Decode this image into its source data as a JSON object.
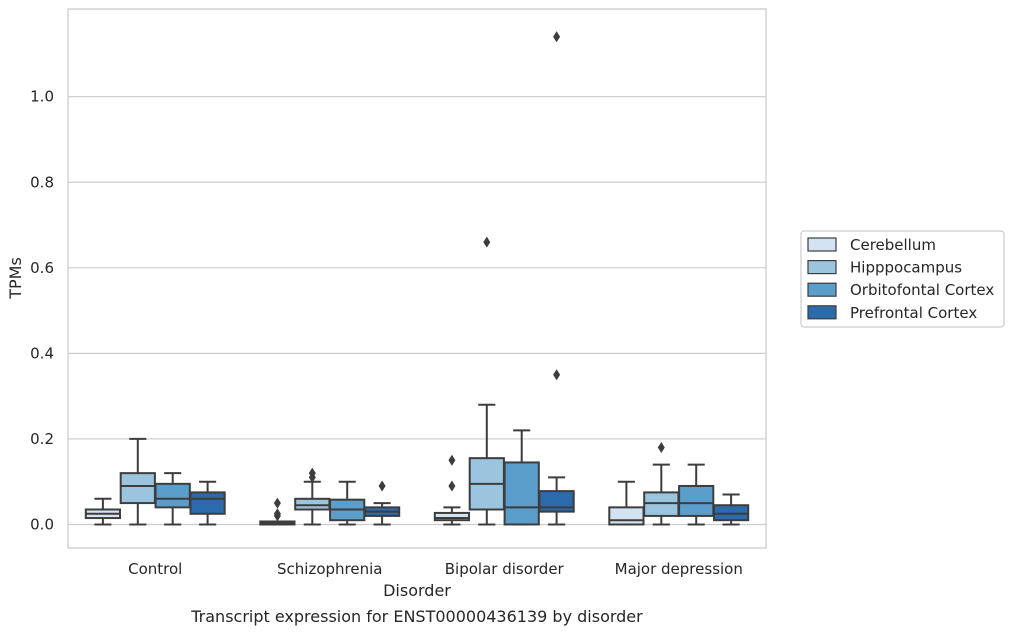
{
  "chart_data": {
    "type": "box",
    "caption": "Transcript expression for ENST00000436139 by disorder",
    "xlabel": "Disorder",
    "ylabel": "TPMs",
    "ylim": [
      -0.055,
      1.205
    ],
    "yticks": [
      "0.0",
      "0.2",
      "0.4",
      "0.6",
      "0.8",
      "1.0"
    ],
    "ytick_values": [
      0.0,
      0.2,
      0.4,
      0.6,
      0.8,
      1.0
    ],
    "grid": "horizontal",
    "legend_position": "right",
    "categories": [
      "Control",
      "Schizophrenia",
      "Bipolar disorder",
      "Major depression"
    ],
    "series": [
      {
        "name": "Cerebellum",
        "color": "#d4e3f2",
        "boxes": [
          {
            "whisker_low": 0.0,
            "q1": 0.015,
            "median": 0.025,
            "q3": 0.035,
            "whisker_high": 0.06,
            "outliers": []
          },
          {
            "whisker_low": 0.0,
            "q1": 0.0,
            "median": 0.003,
            "q3": 0.007,
            "whisker_high": 0.007,
            "outliers": [
              0.02,
              0.025,
              0.05
            ]
          },
          {
            "whisker_low": 0.0,
            "q1": 0.01,
            "median": 0.015,
            "q3": 0.027,
            "whisker_high": 0.04,
            "outliers": [
              0.09,
              0.15
            ]
          },
          {
            "whisker_low": 0.0,
            "q1": 0.0,
            "median": 0.01,
            "q3": 0.04,
            "whisker_high": 0.1,
            "outliers": []
          }
        ]
      },
      {
        "name": "Hipppocampus",
        "color": "#9bc5df",
        "boxes": [
          {
            "whisker_low": 0.0,
            "q1": 0.05,
            "median": 0.09,
            "q3": 0.12,
            "whisker_high": 0.2,
            "outliers": []
          },
          {
            "whisker_low": 0.0,
            "q1": 0.035,
            "median": 0.045,
            "q3": 0.06,
            "whisker_high": 0.1,
            "outliers": [
              0.11,
              0.12
            ]
          },
          {
            "whisker_low": 0.0,
            "q1": 0.035,
            "median": 0.095,
            "q3": 0.155,
            "whisker_high": 0.28,
            "outliers": [
              0.66
            ]
          },
          {
            "whisker_low": 0.0,
            "q1": 0.02,
            "median": 0.05,
            "q3": 0.075,
            "whisker_high": 0.14,
            "outliers": [
              0.18
            ]
          }
        ]
      },
      {
        "name": "Orbitofontal Cortex",
        "color": "#5b9dcb",
        "boxes": [
          {
            "whisker_low": 0.0,
            "q1": 0.04,
            "median": 0.06,
            "q3": 0.095,
            "whisker_high": 0.12,
            "outliers": []
          },
          {
            "whisker_low": 0.0,
            "q1": 0.01,
            "median": 0.035,
            "q3": 0.058,
            "whisker_high": 0.1,
            "outliers": []
          },
          {
            "whisker_low": 0.0,
            "q1": 0.0,
            "median": 0.04,
            "q3": 0.145,
            "whisker_high": 0.22,
            "outliers": []
          },
          {
            "whisker_low": 0.0,
            "q1": 0.02,
            "median": 0.05,
            "q3": 0.09,
            "whisker_high": 0.14,
            "outliers": []
          }
        ]
      },
      {
        "name": "Prefrontal Cortex",
        "color": "#2b6aab",
        "boxes": [
          {
            "whisker_low": 0.0,
            "q1": 0.025,
            "median": 0.06,
            "q3": 0.075,
            "whisker_high": 0.1,
            "outliers": []
          },
          {
            "whisker_low": 0.0,
            "q1": 0.02,
            "median": 0.03,
            "q3": 0.04,
            "whisker_high": 0.05,
            "outliers": [
              0.09
            ]
          },
          {
            "whisker_low": 0.0,
            "q1": 0.03,
            "median": 0.04,
            "q3": 0.078,
            "whisker_high": 0.11,
            "outliers": [
              0.35,
              1.14
            ]
          },
          {
            "whisker_low": 0.0,
            "q1": 0.01,
            "median": 0.025,
            "q3": 0.045,
            "whisker_high": 0.07,
            "outliers": []
          }
        ]
      }
    ]
  }
}
